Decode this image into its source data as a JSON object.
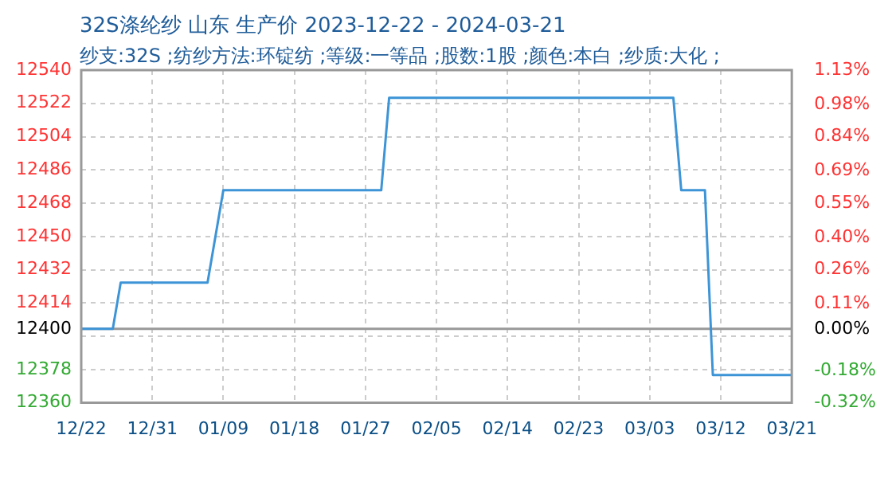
{
  "chart_data": {
    "type": "line",
    "title": "32S涤纶纱 山东 生产价 2023-12-22 - 2024-03-21",
    "subtitle": "纱支:32S ;纺纱方法:环锭纺 ;等级:一等品 ;股数:1股 ;颜色:本白 ;纱质:大化 ;",
    "series": [
      {
        "color": "#3d94d6",
        "x": [
          "2023-12-22",
          "2023-12-26",
          "2023-12-27",
          "2024-01-07",
          "2024-01-09",
          "2024-01-29",
          "2024-01-30",
          "2024-03-06",
          "2024-03-07",
          "2024-03-10",
          "2024-03-11",
          "2024-03-21"
        ],
        "values": [
          12400,
          12400,
          12425,
          12425,
          12475,
          12475,
          12525,
          12525,
          12475,
          12475,
          12375,
          12375
        ]
      }
    ],
    "xlim": [
      "2023-12-22",
      "2024-03-21"
    ],
    "xticks": [
      {
        "value": "2023-12-22",
        "label": "12/22"
      },
      {
        "value": "2023-12-31",
        "label": "12/31"
      },
      {
        "value": "2024-01-09",
        "label": "01/09"
      },
      {
        "value": "2024-01-18",
        "label": "01/18"
      },
      {
        "value": "2024-01-27",
        "label": "01/27"
      },
      {
        "value": "2024-02-05",
        "label": "02/05"
      },
      {
        "value": "2024-02-14",
        "label": "02/14"
      },
      {
        "value": "2024-02-23",
        "label": "02/23"
      },
      {
        "value": "2024-03-03",
        "label": "03/03"
      },
      {
        "value": "2024-03-12",
        "label": "03/12"
      },
      {
        "value": "2024-03-21",
        "label": "03/21"
      }
    ],
    "ylim": [
      12360,
      12540
    ],
    "yticks": [
      12360,
      12378,
      {
        "value": 12396,
        "label": null
      },
      12400,
      12414,
      12432,
      12450,
      12468,
      12486,
      12504,
      12522,
      12540
    ],
    "y2lim": [
      -0.32,
      1.13
    ],
    "y2ticks": [
      {
        "value": -0.32,
        "label": "-0.32%"
      },
      {
        "value": -0.18,
        "label": "-0.18%"
      },
      {
        "value": 0,
        "label": "0.00%"
      },
      {
        "value": 0.11,
        "label": "0.11%"
      },
      {
        "value": 0.26,
        "label": "0.26%"
      },
      {
        "value": 0.4,
        "label": "0.40%"
      },
      {
        "value": 0.55,
        "label": "0.55%"
      },
      {
        "value": 0.69,
        "label": "0.69%"
      },
      {
        "value": 0.84,
        "label": "0.84%"
      },
      {
        "value": 0.98,
        "label": "0.98%"
      },
      {
        "value": 1.13,
        "label": "1.13%"
      }
    ],
    "ref_lines": [
      {
        "axis": "y",
        "value": 12400,
        "color": "#999999"
      }
    ],
    "grid": true,
    "legend": false,
    "marker": "none",
    "line_style": "solid"
  }
}
